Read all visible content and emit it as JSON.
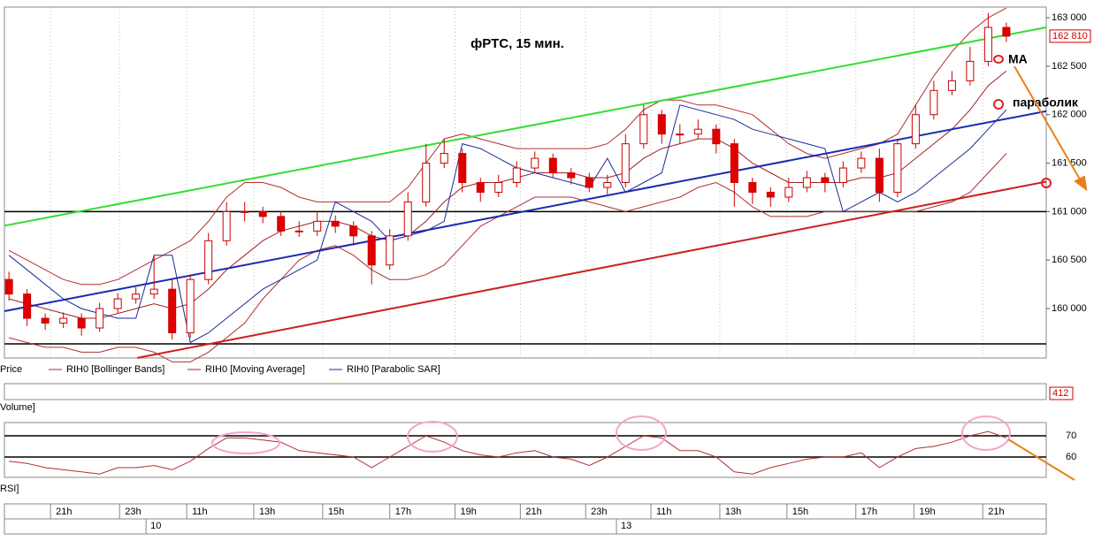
{
  "chart_data": [
    {
      "type": "candlestick",
      "title": "фРТС,  15 мин.",
      "name": "Price",
      "up_color": "#ffffff",
      "down_color": "#e00000",
      "edge_color": "#cc0000",
      "xlim": [
        -0.25,
        57.2
      ],
      "ylim": [
        159490,
        163110
      ],
      "yticks": [
        {
          "value": 160000,
          "label": "160 000"
        },
        {
          "value": 160500,
          "label": "160 500"
        },
        {
          "value": 161000,
          "label": "161 000"
        },
        {
          "value": 161500,
          "label": "161 500"
        },
        {
          "value": 162000,
          "label": "162 000"
        },
        {
          "value": 162500,
          "label": "162 500"
        },
        {
          "value": 163000,
          "label": "163 000"
        }
      ],
      "xticks": [
        {
          "value": 2.29,
          "label": "21h"
        },
        {
          "value": 6.1,
          "label": "23h"
        },
        {
          "value": 9.8,
          "label": "11h"
        },
        {
          "value": 13.5,
          "label": "13h"
        },
        {
          "value": 17.3,
          "label": "15h"
        },
        {
          "value": 21,
          "label": "17h"
        },
        {
          "value": 24.6,
          "label": "19h"
        },
        {
          "value": 28.2,
          "label": "21h"
        },
        {
          "value": 31.8,
          "label": "23h"
        },
        {
          "value": 35.4,
          "label": "11h"
        },
        {
          "value": 39.2,
          "label": "13h"
        },
        {
          "value": 42.9,
          "label": "15h"
        },
        {
          "value": 46.7,
          "label": "17h"
        },
        {
          "value": 49.9,
          "label": "19h"
        },
        {
          "value": 53.7,
          "label": "21h"
        }
      ],
      "date_ticks": [
        {
          "value": 7.56,
          "label": "10"
        },
        {
          "value": 33.5,
          "label": "13"
        }
      ],
      "grid": true,
      "last_price": {
        "value": 162810,
        "label": "162 810"
      },
      "open": [
        160300,
        160150,
        159900,
        159850,
        159900,
        159800,
        160000,
        160100,
        160150,
        160200,
        159750,
        160300,
        160700,
        161000,
        161000,
        160950,
        160800,
        160800,
        160900,
        160850,
        160750,
        160450,
        160750,
        161100,
        161500,
        161600,
        161300,
        161200,
        161300,
        161450,
        161550,
        161400,
        161350,
        161250,
        161300,
        161700,
        162000,
        161800,
        161800,
        161850,
        161700,
        161300,
        161200,
        161150,
        161250,
        161350,
        161300,
        161450,
        161550,
        161200,
        161700,
        162000,
        162250,
        162350,
        162550,
        162900
      ],
      "high": [
        160380,
        160200,
        159950,
        159960,
        159950,
        160060,
        160160,
        160220,
        160550,
        160300,
        160350,
        160780,
        161100,
        161100,
        161050,
        161000,
        160900,
        161000,
        160960,
        160900,
        160800,
        160820,
        161200,
        161700,
        161750,
        161650,
        161350,
        161380,
        161520,
        161620,
        161600,
        161450,
        161400,
        161380,
        161800,
        162100,
        162050,
        161900,
        161950,
        161900,
        161750,
        161350,
        161250,
        161350,
        161420,
        161400,
        161520,
        161620,
        161650,
        161750,
        162100,
        162350,
        162450,
        162700,
        163050,
        162950
      ],
      "low": [
        160080,
        159820,
        159780,
        159800,
        159720,
        159760,
        159950,
        160050,
        160100,
        159680,
        159700,
        160250,
        160650,
        160900,
        160880,
        160750,
        160740,
        160750,
        160780,
        160650,
        160250,
        160400,
        160700,
        161050,
        161450,
        161200,
        161100,
        161150,
        161250,
        161400,
        161350,
        161280,
        161200,
        161180,
        161250,
        161650,
        161700,
        161700,
        161750,
        161600,
        161050,
        161080,
        161050,
        161100,
        161200,
        161200,
        161250,
        161400,
        161100,
        161150,
        161650,
        161950,
        162200,
        162300,
        162500,
        162750
      ],
      "close": [
        160150,
        159900,
        159850,
        159900,
        159800,
        160000,
        160100,
        160150,
        160200,
        159750,
        160300,
        160700,
        161000,
        161000,
        160950,
        160800,
        160800,
        160900,
        160850,
        160750,
        160450,
        160750,
        161100,
        161500,
        161600,
        161300,
        161200,
        161300,
        161450,
        161550,
        161400,
        161350,
        161250,
        161300,
        161700,
        162000,
        161800,
        161800,
        161850,
        161700,
        161300,
        161200,
        161150,
        161250,
        161350,
        161300,
        161450,
        161550,
        161200,
        161700,
        162000,
        162250,
        162350,
        162550,
        162900,
        162810
      ],
      "series": [
        {
          "name": "RIH0 [Bollinger Bands]",
          "color": "#b03030",
          "upper": [
            160600,
            160500,
            160400,
            160300,
            160250,
            160250,
            160300,
            160400,
            160500,
            160600,
            160700,
            160900,
            161150,
            161300,
            161300,
            161250,
            161150,
            161100,
            161100,
            161100,
            161100,
            161100,
            161250,
            161500,
            161750,
            161800,
            161750,
            161700,
            161650,
            161650,
            161650,
            161650,
            161650,
            161700,
            161850,
            162050,
            162150,
            162150,
            162100,
            162100,
            162050,
            162000,
            161850,
            161700,
            161600,
            161550,
            161600,
            161650,
            161700,
            161800,
            162100,
            162400,
            162650,
            162850,
            163000,
            163100
          ],
          "lower": [
            159700,
            159650,
            159600,
            159600,
            159550,
            159550,
            159600,
            159600,
            159550,
            159450,
            159450,
            159550,
            159700,
            159850,
            160100,
            160300,
            160500,
            160600,
            160650,
            160550,
            160400,
            160300,
            160300,
            160350,
            160450,
            160650,
            160850,
            160950,
            161050,
            161150,
            161150,
            161150,
            161100,
            161050,
            161000,
            161050,
            161100,
            161150,
            161250,
            161300,
            161200,
            161050,
            160950,
            160950,
            160950,
            161000,
            161000,
            161000,
            161000,
            161000,
            161000,
            161050,
            161100,
            161200,
            161400,
            161600
          ]
        },
        {
          "name": "RIH0 [Moving Average]",
          "color": "#a02020",
          "values": [
            160100,
            160050,
            160000,
            159950,
            159900,
            159900,
            159950,
            160000,
            160050,
            160000,
            160050,
            160200,
            160400,
            160550,
            160700,
            160800,
            160850,
            160900,
            160900,
            160850,
            160750,
            160700,
            160750,
            160900,
            161100,
            161250,
            161300,
            161300,
            161350,
            161400,
            161400,
            161400,
            161350,
            161350,
            161400,
            161550,
            161650,
            161700,
            161750,
            161750,
            161650,
            161500,
            161400,
            161300,
            161300,
            161300,
            161300,
            161350,
            161350,
            161400,
            161550,
            161700,
            161850,
            162050,
            162300,
            162450
          ]
        },
        {
          "name": "RIH0 [Parabolic SAR]",
          "color": "#1a2a9a",
          "values": [
            160550,
            160400,
            160250,
            160100,
            160000,
            159950,
            159900,
            159900,
            160550,
            160550,
            159650,
            159750,
            159900,
            160050,
            160200,
            160300,
            160400,
            160500,
            161100,
            161000,
            160900,
            160700,
            160750,
            160800,
            160900,
            161700,
            161650,
            161550,
            161450,
            161400,
            161350,
            161300,
            161250,
            161550,
            161200,
            161300,
            161400,
            162100,
            162050,
            162000,
            161950,
            161850,
            161800,
            161750,
            161700,
            161650,
            161000,
            161100,
            161200,
            161100,
            161200,
            161350,
            161500,
            161650,
            161850,
            162050
          ]
        }
      ],
      "lines": [
        {
          "color": "#33dd33",
          "x": [
            -0.25,
            57.2
          ],
          "y": [
            160855,
            162900
          ]
        },
        {
          "color": "#1a2ab0",
          "x": [
            -0.25,
            57.2
          ],
          "y": [
            159973,
            162036
          ]
        },
        {
          "color": "#cc2020",
          "x": [
            7.07,
            57.2
          ],
          "y": [
            159491,
            161309
          ]
        }
      ],
      "hlines": [
        161000,
        159636
      ],
      "annotations": [
        "МА",
        "параболик"
      ]
    },
    {
      "type": "volume",
      "name": "Volume]",
      "last_value": 412
    },
    {
      "type": "line",
      "name": "RSI]",
      "color": "#b03030",
      "xlim": [
        -0.25,
        57.2
      ],
      "ylim": [
        50.4,
        76.25
      ],
      "yticks": [
        60,
        70
      ],
      "values": [
        58,
        57,
        55,
        54,
        53,
        52,
        55,
        55,
        56,
        54,
        58,
        64,
        69,
        69,
        68,
        67,
        63,
        62,
        61,
        60,
        55,
        60,
        65,
        70,
        67,
        63,
        61,
        60,
        62,
        63,
        60,
        59,
        56,
        60,
        65,
        70,
        69,
        63,
        63,
        60,
        53,
        52,
        55,
        57,
        59,
        60,
        60,
        62,
        55,
        60,
        64,
        65,
        67,
        70,
        72,
        69
      ]
    }
  ]
}
